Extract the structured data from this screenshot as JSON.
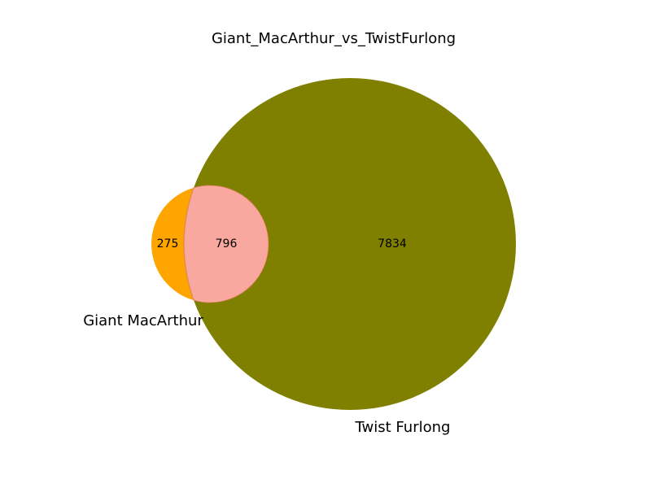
{
  "title": "Giant_MacArthur_vs_TwistFurlong",
  "sets": [
    {
      "name": "Giant MacArthur",
      "color": "#ffa500"
    },
    {
      "name": "Twist Furlong",
      "color": "#808000"
    }
  ],
  "intersection_color": "#f9a8a0",
  "intersection_edge_color": "#e07a50",
  "counts": {
    "only_a": "275",
    "both": "796",
    "only_b": "7834"
  }
}
